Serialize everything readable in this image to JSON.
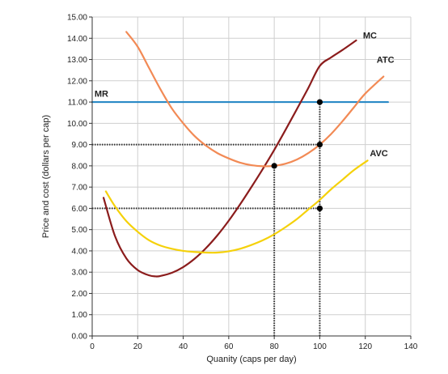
{
  "chart_data": {
    "type": "line",
    "xlabel": "Quanity (caps per day)",
    "ylabel": "Price and cost (dollars per cap)",
    "xlim": [
      0,
      140
    ],
    "ylim": [
      0,
      15
    ],
    "x_ticks": [
      0,
      20,
      40,
      60,
      80,
      100,
      120,
      140
    ],
    "y_ticks": [
      0,
      1,
      2,
      3,
      4,
      5,
      6,
      7,
      8,
      9,
      10,
      11,
      12,
      13,
      14,
      15
    ],
    "x_tick_labels": [
      "0",
      "20",
      "40",
      "60",
      "80",
      "100",
      "120",
      "140"
    ],
    "y_tick_labels": [
      "0.00",
      "1.00",
      "2.00",
      "3.00",
      "4.00",
      "5.00",
      "6.00",
      "7.00",
      "8.00",
      "9.00",
      "10.00",
      "11.00",
      "12.00",
      "13.00",
      "14.00",
      "15.00"
    ],
    "grid": true,
    "series": [
      {
        "name": "MR",
        "color": "#2a8ac6",
        "x": [
          0,
          130
        ],
        "y": [
          11,
          11
        ]
      },
      {
        "name": "MC",
        "color": "#8b1c1c",
        "x": [
          5,
          10,
          15,
          20,
          25,
          28,
          30,
          35,
          40,
          45,
          50,
          55,
          60,
          65,
          70,
          75,
          80,
          85,
          90,
          95,
          100,
          105,
          110,
          116
        ],
        "y": [
          6.5,
          4.7,
          3.65,
          3.1,
          2.85,
          2.8,
          2.82,
          2.97,
          3.24,
          3.63,
          4.13,
          4.73,
          5.42,
          6.19,
          7.01,
          7.86,
          8.75,
          9.7,
          10.68,
          11.67,
          12.7,
          13.1,
          13.45,
          13.9
        ]
      },
      {
        "name": "ATC",
        "color": "#f28a55",
        "x": [
          15,
          20,
          25,
          30,
          35,
          40,
          45,
          50,
          55,
          60,
          65,
          70,
          75,
          80,
          85,
          90,
          95,
          100,
          105,
          110,
          115,
          120,
          128
        ],
        "y": [
          14.3,
          13.6,
          12.6,
          11.6,
          10.7,
          10.0,
          9.4,
          8.95,
          8.6,
          8.35,
          8.15,
          8.03,
          7.98,
          8.0,
          8.1,
          8.3,
          8.6,
          9.0,
          9.5,
          10.1,
          10.75,
          11.4,
          12.2
        ]
      },
      {
        "name": "AVC",
        "color": "#f5d10a",
        "x": [
          6,
          10,
          15,
          20,
          25,
          30,
          35,
          40,
          45,
          50,
          55,
          60,
          65,
          70,
          75,
          80,
          85,
          90,
          95,
          100,
          105,
          110,
          115,
          121
        ],
        "y": [
          6.8,
          6.1,
          5.4,
          4.9,
          4.5,
          4.25,
          4.1,
          4.0,
          3.95,
          3.92,
          3.92,
          3.98,
          4.1,
          4.28,
          4.5,
          4.78,
          5.12,
          5.5,
          5.95,
          6.4,
          6.9,
          7.35,
          7.8,
          8.25
        ]
      }
    ],
    "curve_labels": [
      {
        "text": "MR",
        "x": 1,
        "y": 11.25
      },
      {
        "text": "MC",
        "x": 119,
        "y": 14.0
      },
      {
        "text": "ATC",
        "x": 125,
        "y": 12.85
      },
      {
        "text": "AVC",
        "x": 122,
        "y": 8.45
      }
    ],
    "points": [
      {
        "x": 80,
        "y": 8
      },
      {
        "x": 100,
        "y": 11
      },
      {
        "x": 100,
        "y": 9
      },
      {
        "x": 100,
        "y": 6
      }
    ],
    "dotted_guides": [
      {
        "from": [
          0,
          9
        ],
        "to": [
          100,
          9
        ]
      },
      {
        "from": [
          0,
          6
        ],
        "to": [
          100,
          6
        ]
      },
      {
        "from": [
          80,
          0
        ],
        "to": [
          80,
          8
        ]
      },
      {
        "from": [
          100,
          0
        ],
        "to": [
          100,
          11
        ]
      }
    ]
  }
}
